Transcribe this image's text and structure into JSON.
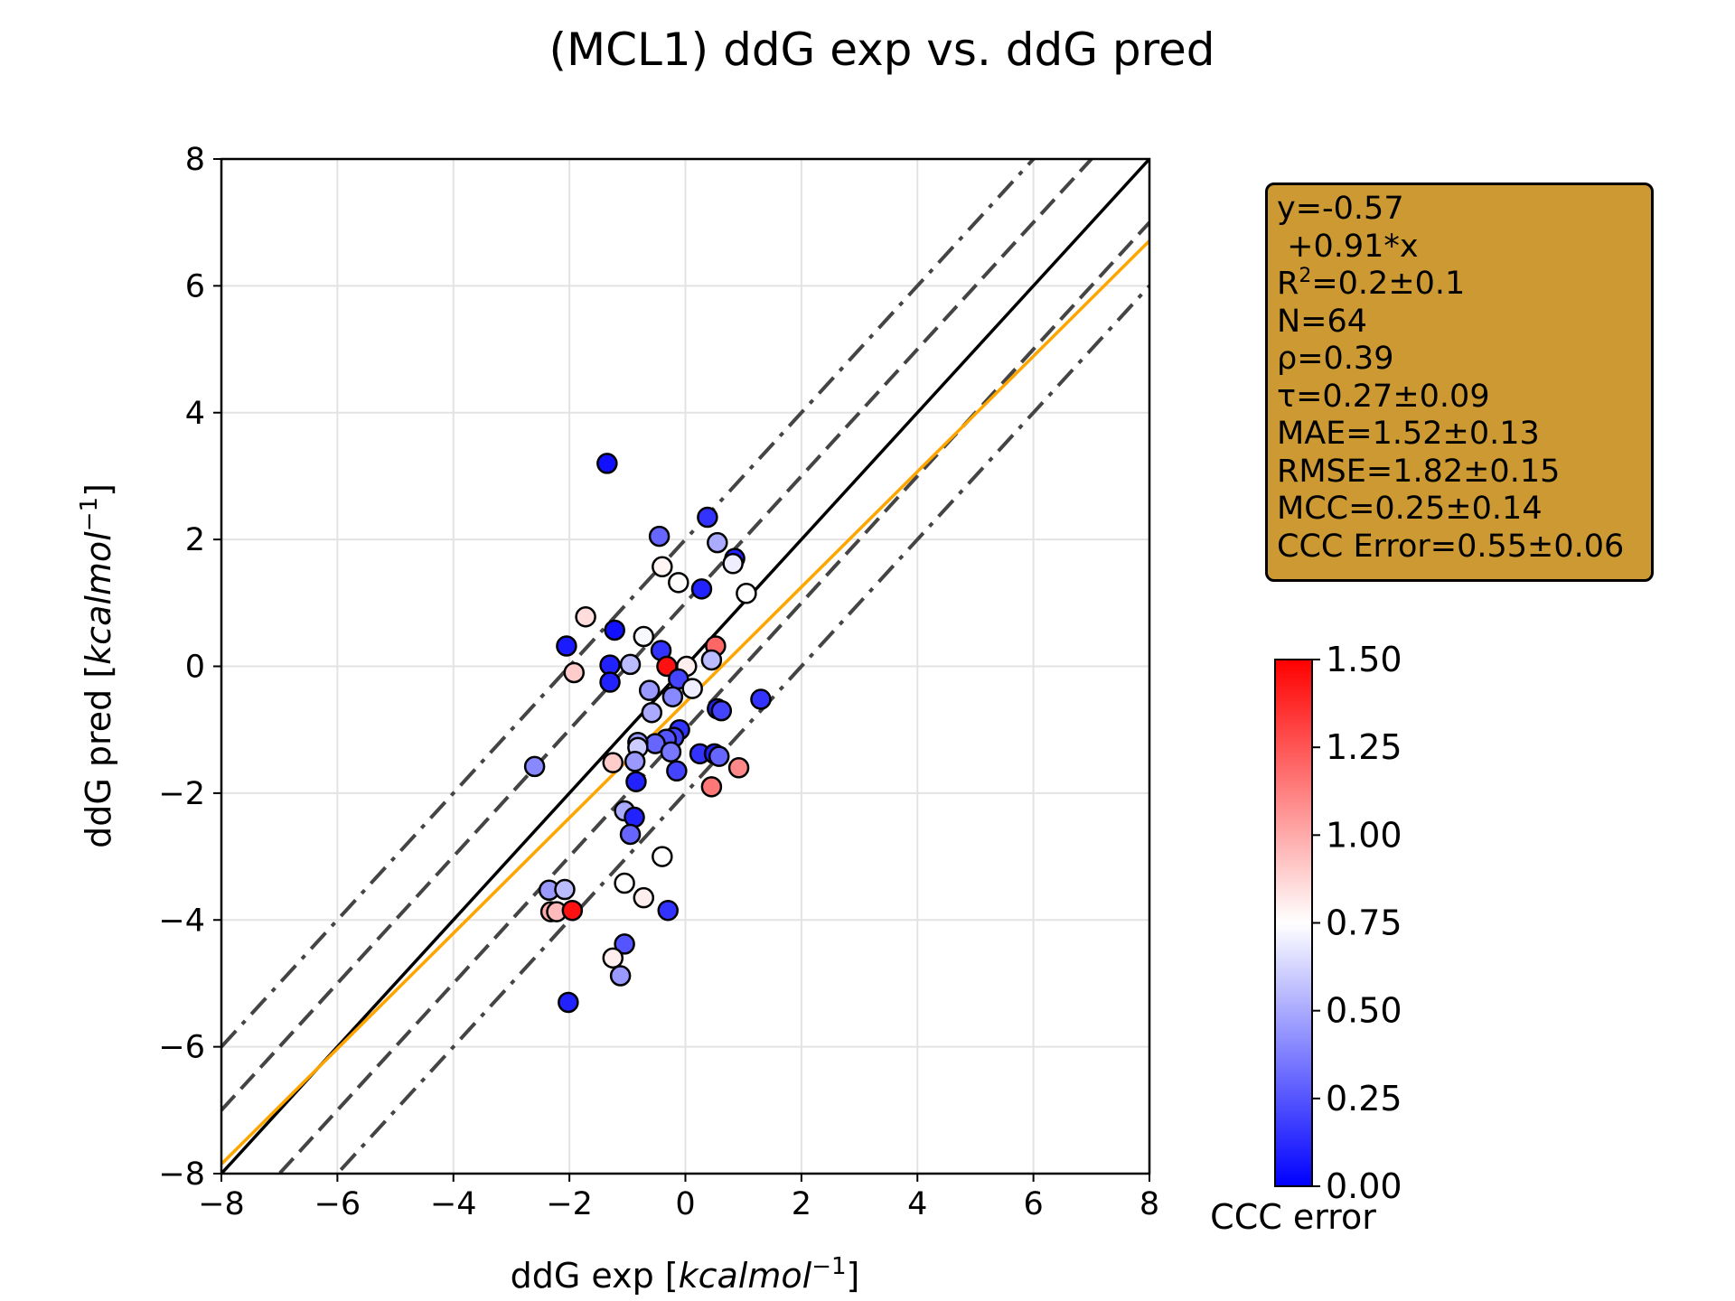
{
  "chart_data": {
    "type": "scatter",
    "title": "(MCL1) ddG exp vs. ddG pred",
    "xlabel": {
      "prefix": "ddG exp [",
      "italic": "kcalmol",
      "sup": "−1",
      "suffix": "]"
    },
    "ylabel": {
      "prefix": "ddG pred [",
      "italic": "kcalmol",
      "sup": "−1",
      "suffix": "]"
    },
    "xlim": [
      -8,
      8
    ],
    "ylim": [
      -8,
      8
    ],
    "x_ticks": [
      -8,
      -6,
      -4,
      -2,
      0,
      2,
      4,
      6,
      8
    ],
    "y_ticks": [
      -8,
      -6,
      -4,
      -2,
      0,
      2,
      4,
      6,
      8
    ],
    "x_tick_labels": [
      "−8",
      "−6",
      "−4",
      "−2",
      "0",
      "2",
      "4",
      "6",
      "8"
    ],
    "y_tick_labels": [
      "−8",
      "−6",
      "−4",
      "−2",
      "0",
      "2",
      "4",
      "6",
      "8"
    ],
    "grid": true,
    "reference_lines": [
      {
        "kind": "identity",
        "intercept": 0,
        "slope": 1,
        "color": "#000000",
        "style": "solid"
      },
      {
        "kind": "offset",
        "intercept": 1,
        "slope": 1,
        "color": "#444444",
        "style": "dashed"
      },
      {
        "kind": "offset",
        "intercept": -1,
        "slope": 1,
        "color": "#444444",
        "style": "dashed"
      },
      {
        "kind": "offset",
        "intercept": 2,
        "slope": 1,
        "color": "#444444",
        "style": "dashdot"
      },
      {
        "kind": "offset",
        "intercept": -2,
        "slope": 1,
        "color": "#444444",
        "style": "dashdot"
      },
      {
        "kind": "fit",
        "intercept": -0.57,
        "slope": 0.91,
        "color": "#ffa500",
        "style": "solid"
      }
    ],
    "colormap": {
      "name": "bwr",
      "min": 0.0,
      "max": 1.5,
      "label": "CCC error",
      "ticks": [
        "0.00",
        "0.25",
        "0.50",
        "0.75",
        "1.00",
        "1.25",
        "1.50"
      ],
      "tick_values": [
        0,
        0.25,
        0.5,
        0.75,
        1.0,
        1.25,
        1.5
      ]
    },
    "points": [
      {
        "x": -1.35,
        "y": 3.2,
        "c": 0.05
      },
      {
        "x": 0.38,
        "y": 2.35,
        "c": 0.15
      },
      {
        "x": -0.45,
        "y": 2.05,
        "c": 0.3
      },
      {
        "x": 0.55,
        "y": 1.95,
        "c": 0.5
      },
      {
        "x": 0.85,
        "y": 1.7,
        "c": 0.1
      },
      {
        "x": 0.82,
        "y": 1.62,
        "c": 0.7
      },
      {
        "x": -0.4,
        "y": 1.57,
        "c": 0.78
      },
      {
        "x": -0.12,
        "y": 1.32,
        "c": 0.76
      },
      {
        "x": 0.28,
        "y": 1.22,
        "c": 0.1
      },
      {
        "x": 1.05,
        "y": 1.15,
        "c": 0.75
      },
      {
        "x": -1.72,
        "y": 0.78,
        "c": 0.85
      },
      {
        "x": -1.22,
        "y": 0.57,
        "c": 0.05
      },
      {
        "x": -0.72,
        "y": 0.47,
        "c": 0.73
      },
      {
        "x": -2.05,
        "y": 0.32,
        "c": 0.08
      },
      {
        "x": 0.52,
        "y": 0.32,
        "c": 1.2
      },
      {
        "x": -0.42,
        "y": 0.25,
        "c": 0.15
      },
      {
        "x": 0.45,
        "y": 0.1,
        "c": 0.55
      },
      {
        "x": -1.3,
        "y": 0.02,
        "c": 0.1
      },
      {
        "x": -0.95,
        "y": 0.03,
        "c": 0.55
      },
      {
        "x": -0.32,
        "y": 0.0,
        "c": 1.45
      },
      {
        "x": 0.02,
        "y": 0.0,
        "c": 0.8
      },
      {
        "x": -1.92,
        "y": -0.1,
        "c": 0.9
      },
      {
        "x": -0.12,
        "y": -0.2,
        "c": 0.2
      },
      {
        "x": -1.3,
        "y": -0.25,
        "c": 0.1
      },
      {
        "x": -0.62,
        "y": -0.38,
        "c": 0.45
      },
      {
        "x": 0.12,
        "y": -0.35,
        "c": 0.7
      },
      {
        "x": -0.22,
        "y": -0.48,
        "c": 0.4
      },
      {
        "x": 1.3,
        "y": -0.52,
        "c": 0.15
      },
      {
        "x": 0.55,
        "y": -0.67,
        "c": 0.1
      },
      {
        "x": 0.62,
        "y": -0.7,
        "c": 0.2
      },
      {
        "x": -0.58,
        "y": -0.73,
        "c": 0.5
      },
      {
        "x": -0.1,
        "y": -1.0,
        "c": 0.15
      },
      {
        "x": -0.2,
        "y": -1.12,
        "c": 0.2
      },
      {
        "x": -0.33,
        "y": -1.15,
        "c": 0.25
      },
      {
        "x": -0.52,
        "y": -1.22,
        "c": 0.3
      },
      {
        "x": -0.82,
        "y": -1.2,
        "c": 0.45
      },
      {
        "x": -0.82,
        "y": -1.28,
        "c": 0.6
      },
      {
        "x": -0.25,
        "y": -1.35,
        "c": 0.35
      },
      {
        "x": 0.25,
        "y": -1.38,
        "c": 0.15
      },
      {
        "x": 0.5,
        "y": -1.38,
        "c": 0.1
      },
      {
        "x": 0.58,
        "y": -1.42,
        "c": 0.3
      },
      {
        "x": -0.87,
        "y": -1.5,
        "c": 0.45
      },
      {
        "x": -1.25,
        "y": -1.52,
        "c": 0.9
      },
      {
        "x": -0.15,
        "y": -1.65,
        "c": 0.2
      },
      {
        "x": 0.92,
        "y": -1.6,
        "c": 1.1
      },
      {
        "x": -2.6,
        "y": -1.58,
        "c": 0.4
      },
      {
        "x": -0.85,
        "y": -1.82,
        "c": 0.1
      },
      {
        "x": 0.45,
        "y": -1.9,
        "c": 1.15
      },
      {
        "x": -1.05,
        "y": -2.28,
        "c": 0.5
      },
      {
        "x": -0.88,
        "y": -2.38,
        "c": 0.1
      },
      {
        "x": -0.95,
        "y": -2.65,
        "c": 0.3
      },
      {
        "x": -0.4,
        "y": -3.0,
        "c": 0.75
      },
      {
        "x": -1.05,
        "y": -3.42,
        "c": 0.75
      },
      {
        "x": -0.72,
        "y": -3.65,
        "c": 0.8
      },
      {
        "x": -2.35,
        "y": -3.53,
        "c": 0.45
      },
      {
        "x": -2.08,
        "y": -3.52,
        "c": 0.55
      },
      {
        "x": -2.32,
        "y": -3.87,
        "c": 1.0
      },
      {
        "x": -2.22,
        "y": -3.87,
        "c": 0.95
      },
      {
        "x": -1.95,
        "y": -3.85,
        "c": 1.45
      },
      {
        "x": -0.3,
        "y": -3.85,
        "c": 0.15
      },
      {
        "x": -1.05,
        "y": -4.38,
        "c": 0.25
      },
      {
        "x": -1.25,
        "y": -4.6,
        "c": 0.8
      },
      {
        "x": -1.12,
        "y": -4.88,
        "c": 0.45
      },
      {
        "x": -2.02,
        "y": -5.3,
        "c": 0.1
      }
    ]
  },
  "stats_box": {
    "fit_eq": "y=-0.57",
    "fit_slope": " +0.91*x",
    "r2_prefix": "R",
    "r2_sup": "2",
    "r2_value": "=0.2±0.1",
    "n": "N=64",
    "rho": "ρ=0.39",
    "tau": "τ=0.27±0.09",
    "mae": "MAE=1.52±0.13",
    "rmse": "RMSE=1.82±0.15",
    "mcc": "MCC=0.25±0.14",
    "ccc_error": "CCC Error=0.55±0.06"
  }
}
